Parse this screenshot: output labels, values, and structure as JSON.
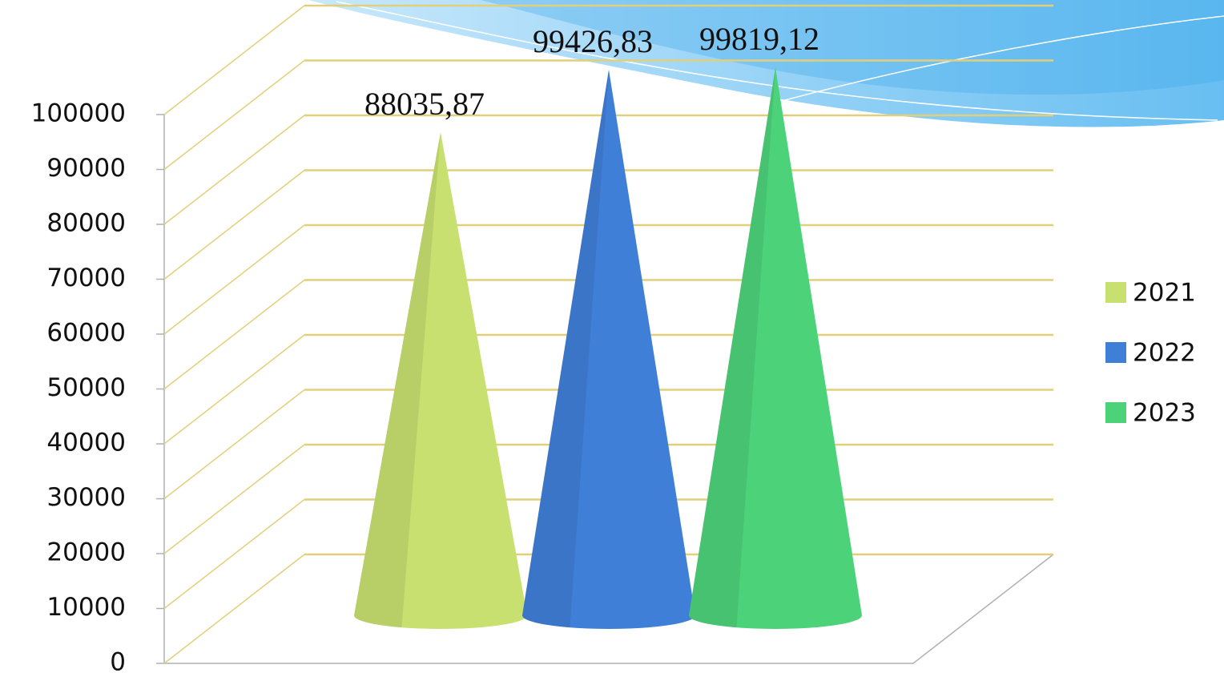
{
  "chart_data": {
    "type": "cone3d",
    "categories": [
      null
    ],
    "series": [
      {
        "name": "2021",
        "color": "#c8e070",
        "values": [
          88035.87
        ],
        "value_labels": [
          "88035,87"
        ]
      },
      {
        "name": "2022",
        "color": "#3f7fd8",
        "values": [
          99426.83
        ],
        "value_labels": [
          "99426,83"
        ]
      },
      {
        "name": "2023",
        "color": "#4cd37a",
        "values": [
          99819.12
        ],
        "value_labels": [
          "99819,12"
        ]
      }
    ],
    "ylim": [
      0,
      100000
    ],
    "yticks": [
      0,
      10000,
      20000,
      30000,
      40000,
      50000,
      60000,
      70000,
      80000,
      90000,
      100000
    ],
    "grid": true,
    "legend": "right"
  }
}
